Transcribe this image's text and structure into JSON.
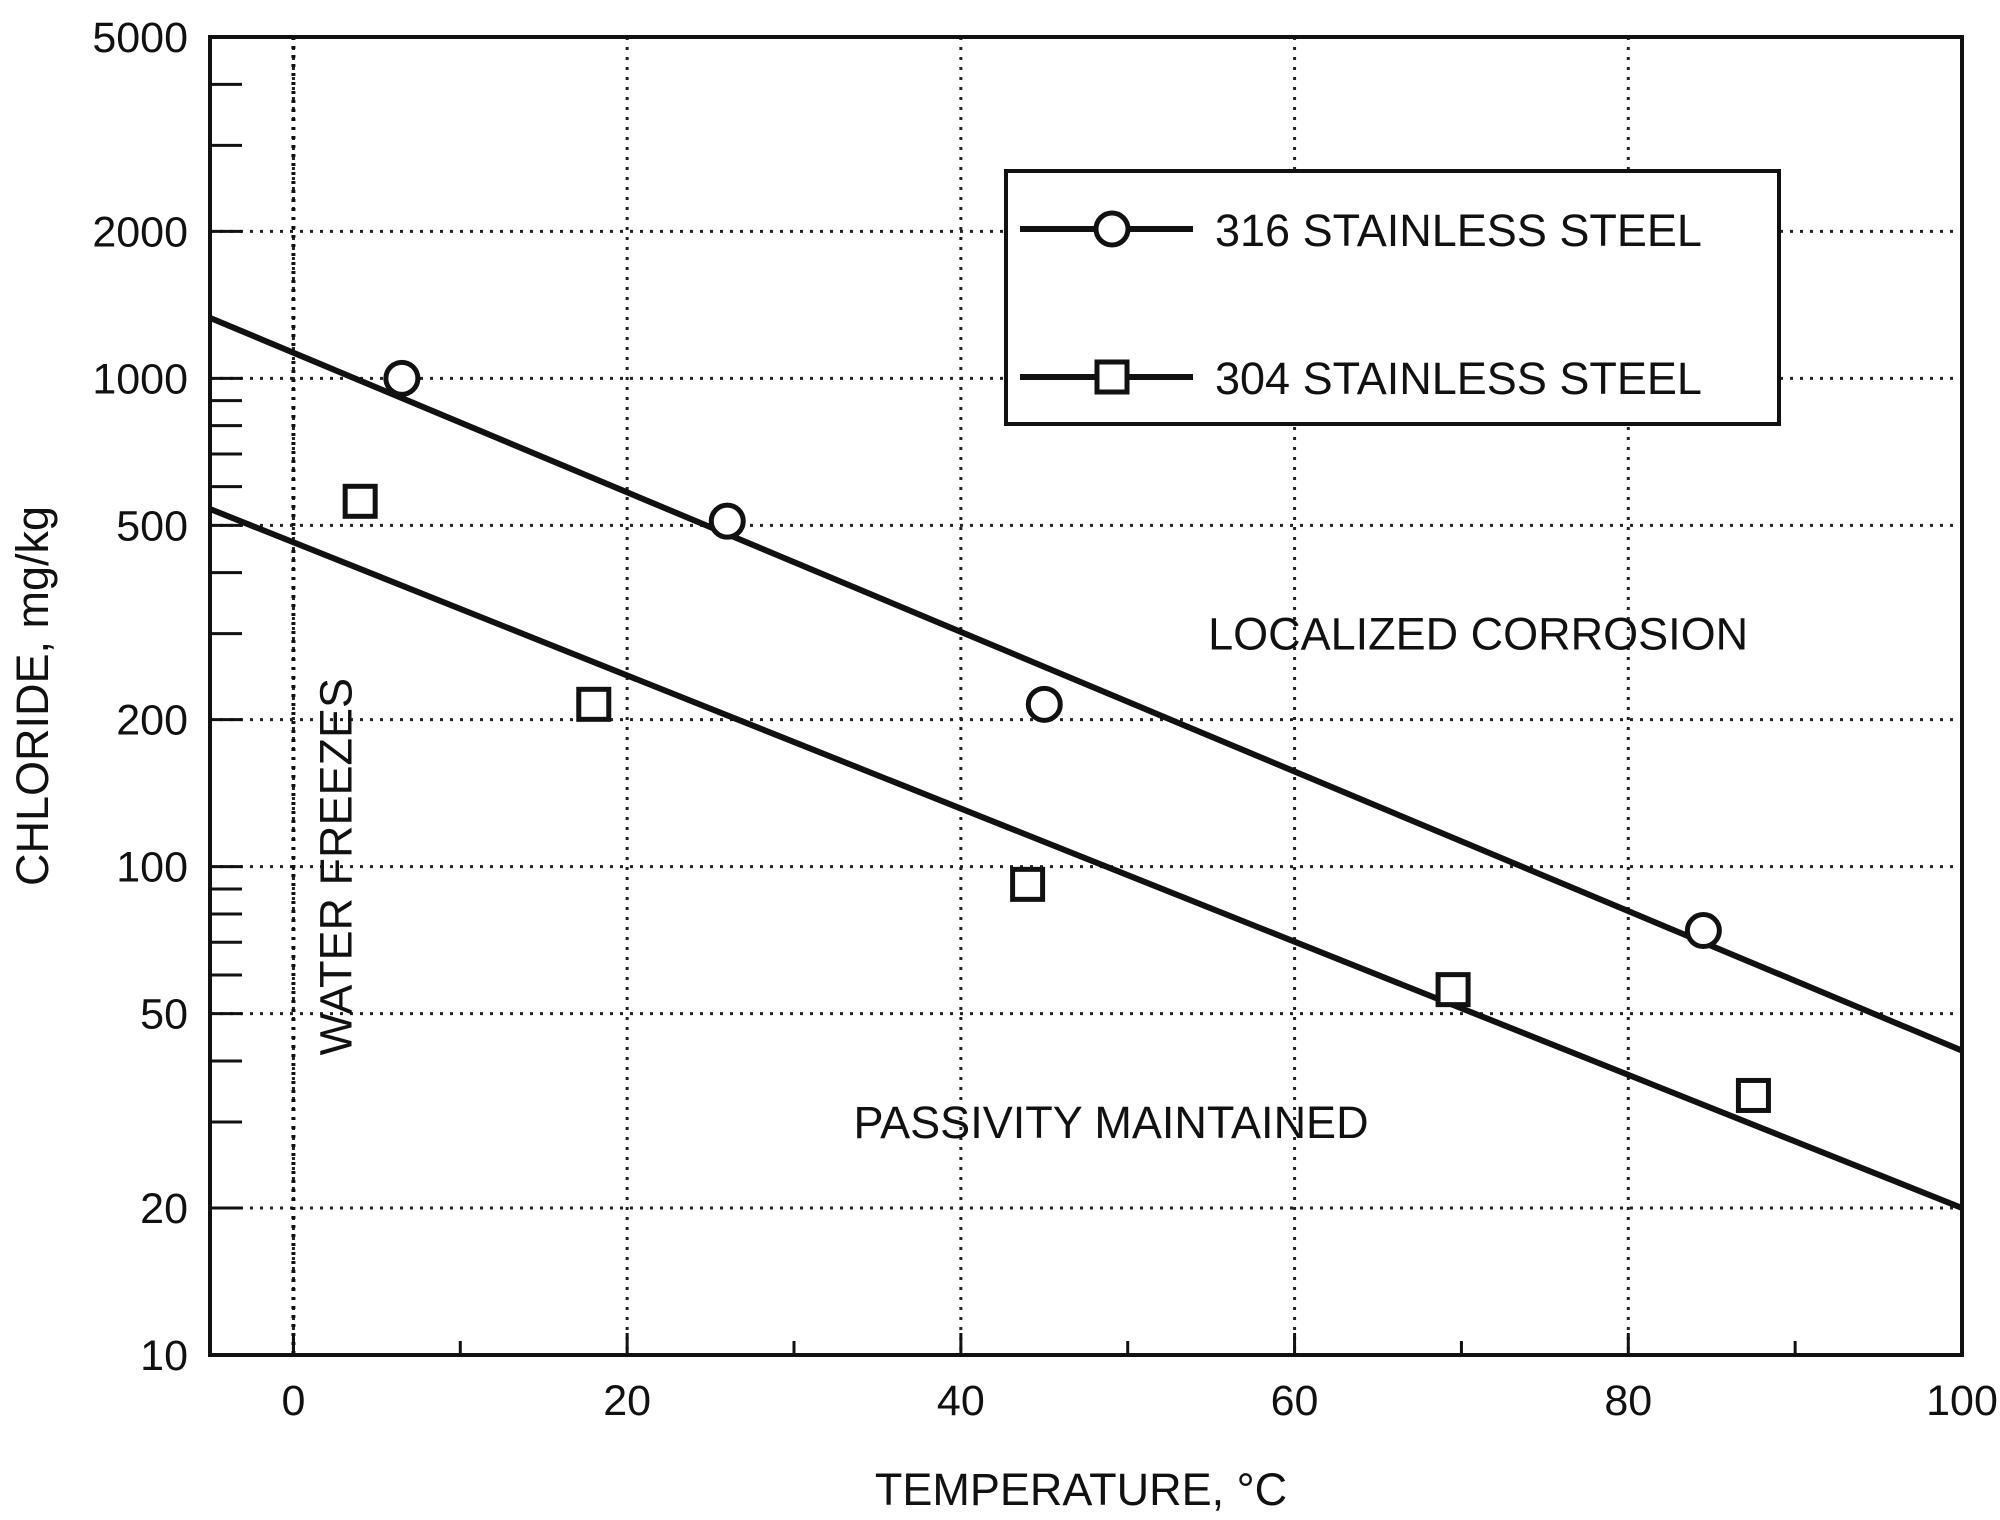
{
  "chart_data": {
    "type": "scatter",
    "title": "",
    "xlabel": "TEMPERATURE, °C",
    "ylabel": "CHLORIDE, mg/kg",
    "xlim": [
      -5,
      100
    ],
    "ylim": [
      10,
      5000
    ],
    "yscale": "log",
    "grid": true,
    "legend_position": "top-right",
    "x_ticks": [
      0,
      20,
      40,
      60,
      80,
      100
    ],
    "x_tick_labels": [
      "0",
      "20",
      "40",
      "60",
      "80",
      "100"
    ],
    "x_minor_ticks": [
      10,
      30,
      50,
      70,
      90
    ],
    "y_ticks": [
      10,
      20,
      50,
      100,
      200,
      500,
      1000,
      2000,
      5000
    ],
    "y_tick_labels": [
      "10",
      "20",
      "50",
      "100",
      "200",
      "500",
      "1000",
      "2000",
      "5000"
    ],
    "y_minor_ticks": [
      30,
      40,
      60,
      70,
      80,
      90,
      300,
      400,
      600,
      700,
      800,
      900,
      3000,
      4000
    ],
    "series": [
      {
        "name": "316 STAINLESS STEEL",
        "marker": "circle",
        "points": [
          [
            6.5,
            1000
          ],
          [
            26,
            510
          ],
          [
            45,
            215
          ],
          [
            84.5,
            74
          ]
        ],
        "fit_line": [
          [
            -5,
            1330
          ],
          [
            100,
            42
          ]
        ]
      },
      {
        "name": "304 STAINLESS STEEL",
        "marker": "square",
        "points": [
          [
            4,
            560
          ],
          [
            18,
            215
          ],
          [
            44,
            92
          ],
          [
            69.5,
            56
          ],
          [
            87.5,
            34
          ]
        ],
        "fit_line": [
          [
            -5,
            540
          ],
          [
            100,
            20
          ]
        ]
      }
    ],
    "annotations": [
      {
        "text": "WATER FREEZES",
        "x": 0,
        "y": 100,
        "vertical": true
      },
      {
        "text": "LOCALIZED CORROSION",
        "x": 71,
        "y": 300
      },
      {
        "text": "PASSIVITY MAINTAINED",
        "x": 49,
        "y": 30
      }
    ],
    "reference_lines": [
      {
        "x": 0,
        "style": "dotted"
      }
    ]
  },
  "colors": {
    "ink": "#111111",
    "grid": "#222222",
    "background": "#ffffff"
  }
}
